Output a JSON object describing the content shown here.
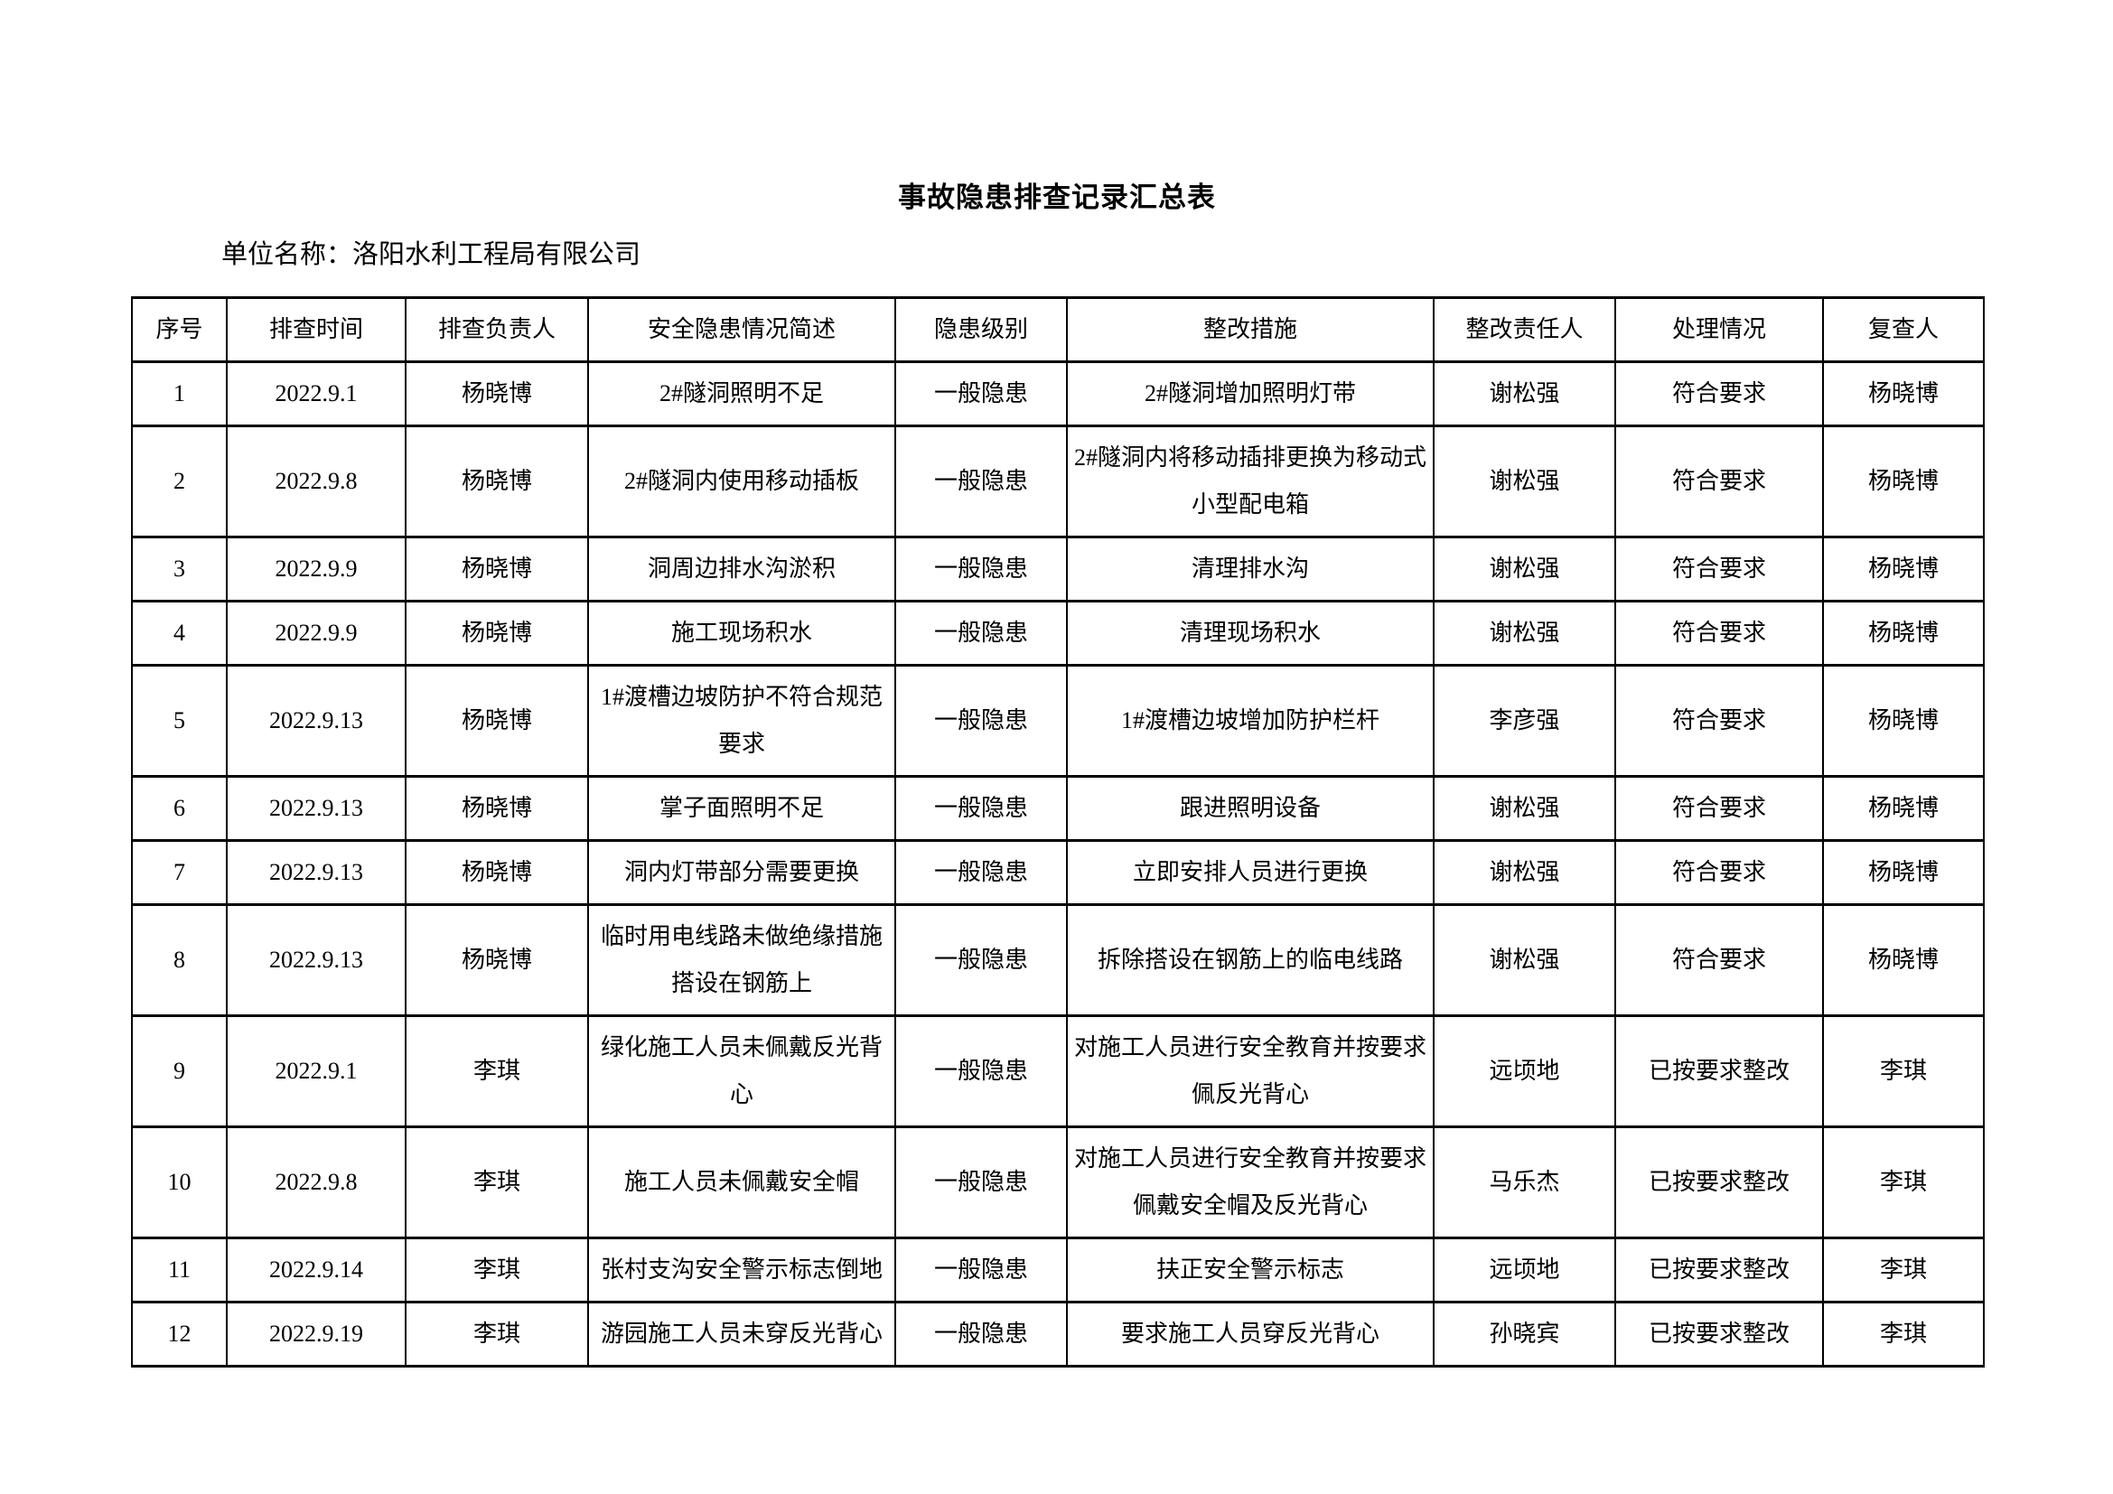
{
  "page": {
    "title": "事故隐患排查记录汇总表",
    "org_label": "单位名称：洛阳水利工程局有限公司"
  },
  "colors": {
    "page_background": "#ffffff",
    "text": "#000000",
    "table_border": "#000000"
  },
  "table": {
    "headers": [
      "序号",
      "排查时间",
      "排查负责人",
      "安全隐患情况简述",
      "隐患级别",
      "整改措施",
      "整改责任人",
      "处理情况",
      "复查人"
    ],
    "rows": [
      [
        "1",
        "2022.9.1",
        "杨晓博",
        "2#隧洞照明不足",
        "一般隐患",
        "2#隧洞增加照明灯带",
        "谢松强",
        "符合要求",
        "杨晓博"
      ],
      [
        "2",
        "2022.9.8",
        "杨晓博",
        "2#隧洞内使用移动插板",
        "一般隐患",
        "2#隧洞内将移动插排更换为移动式小型配电箱",
        "谢松强",
        "符合要求",
        "杨晓博"
      ],
      [
        "3",
        "2022.9.9",
        "杨晓博",
        "洞周边排水沟淤积",
        "一般隐患",
        "清理排水沟",
        "谢松强",
        "符合要求",
        "杨晓博"
      ],
      [
        "4",
        "2022.9.9",
        "杨晓博",
        "施工现场积水",
        "一般隐患",
        "清理现场积水",
        "谢松强",
        "符合要求",
        "杨晓博"
      ],
      [
        "5",
        "2022.9.13",
        "杨晓博",
        "1#渡槽边坡防护不符合规范要求",
        "一般隐患",
        "1#渡槽边坡增加防护栏杆",
        "李彦强",
        "符合要求",
        "杨晓博"
      ],
      [
        "6",
        "2022.9.13",
        "杨晓博",
        "掌子面照明不足",
        "一般隐患",
        "跟进照明设备",
        "谢松强",
        "符合要求",
        "杨晓博"
      ],
      [
        "7",
        "2022.9.13",
        "杨晓博",
        "洞内灯带部分需要更换",
        "一般隐患",
        "立即安排人员进行更换",
        "谢松强",
        "符合要求",
        "杨晓博"
      ],
      [
        "8",
        "2022.9.13",
        "杨晓博",
        "临时用电线路未做绝缘措施搭设在钢筋上",
        "一般隐患",
        "拆除搭设在钢筋上的临电线路",
        "谢松强",
        "符合要求",
        "杨晓博"
      ],
      [
        "9",
        "2022.9.1",
        "李琪",
        "绿化施工人员未佩戴反光背心",
        "一般隐患",
        "对施工人员进行安全教育并按要求佩反光背心",
        "远顷地",
        "已按要求整改",
        "李琪"
      ],
      [
        "10",
        "2022.9.8",
        "李琪",
        "施工人员未佩戴安全帽",
        "一般隐患",
        "对施工人员进行安全教育并按要求佩戴安全帽及反光背心",
        "马乐杰",
        "已按要求整改",
        "李琪"
      ],
      [
        "11",
        "2022.9.14",
        "李琪",
        "张村支沟安全警示标志倒地",
        "一般隐患",
        "扶正安全警示标志",
        "远顷地",
        "已按要求整改",
        "李琪"
      ],
      [
        "12",
        "2022.9.19",
        "李琪",
        "游园施工人员未穿反光背心",
        "一般隐患",
        "要求施工人员穿反光背心",
        "孙晓宾",
        "已按要求整改",
        "李琪"
      ]
    ]
  }
}
